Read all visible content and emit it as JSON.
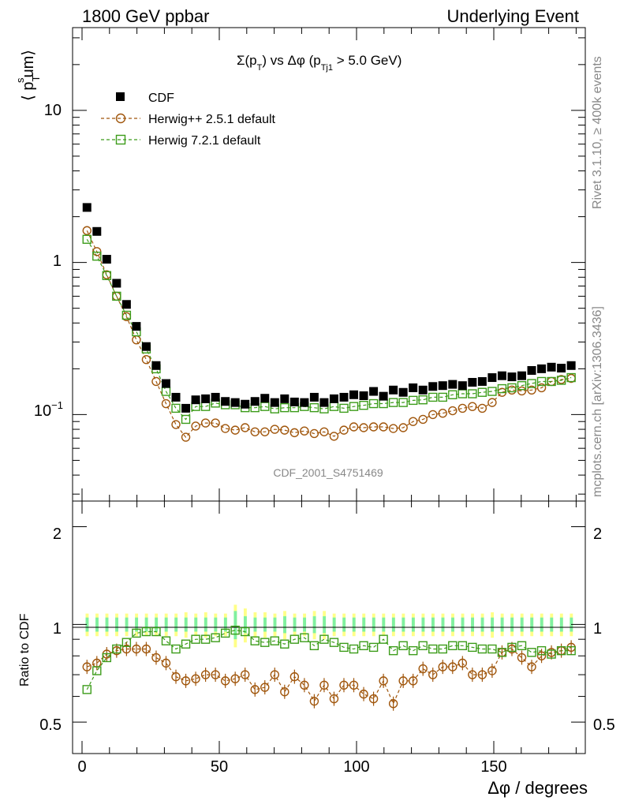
{
  "header": {
    "left": "1800 GeV ppbar",
    "right": "Underlying Event"
  },
  "side": {
    "rivet": "Rivet 3.1.10, ≥ 400k events",
    "mcplots": "mcplots.cern.ch [arXiv:1306.3436]"
  },
  "watermark": "CDF_2001_S4751469",
  "main": {
    "title_parts": [
      "Σ(p",
      "T",
      ") vs Δφ (p",
      "Tj1",
      " > 5.0 GeV)"
    ],
    "ylabel_parts": [
      "⟨ p",
      "T",
      "s",
      "um⟩"
    ],
    "yticks": {
      "t1": "1",
      "t10": "10"
    },
    "ytick_exp": {
      "base": "10",
      "exp": "−1"
    }
  },
  "legend": [
    {
      "label": "CDF",
      "marker": "square-filled",
      "color": "#000000"
    },
    {
      "label": "Herwig++ 2.5.1 default",
      "marker": "circle-open",
      "color": "#a0560c"
    },
    {
      "label": "Herwig 7.2.1 default",
      "marker": "square-open",
      "color": "#3c9c1a"
    }
  ],
  "ratio": {
    "ylabel": "Ratio to CDF",
    "yticks": [
      "0.5",
      "1",
      "2"
    ]
  },
  "xaxis": {
    "label": "Δφ / degrees",
    "ticks": [
      "0",
      "50",
      "100",
      "150"
    ]
  },
  "chart_data": {
    "type": "scatter",
    "x_unit": "degrees",
    "x": [
      1.8,
      5.4,
      9.0,
      12.6,
      16.2,
      19.8,
      23.4,
      27.0,
      30.6,
      34.2,
      37.8,
      41.4,
      45.0,
      48.6,
      52.2,
      55.8,
      59.4,
      63.0,
      66.6,
      70.2,
      73.8,
      77.4,
      81.0,
      84.6,
      88.2,
      91.8,
      95.4,
      99.0,
      102.6,
      106.2,
      109.8,
      113.4,
      117.0,
      120.6,
      124.2,
      127.8,
      131.4,
      135.0,
      138.6,
      142.2,
      145.8,
      149.4,
      153.0,
      156.6,
      160.2,
      163.8,
      167.4,
      171.0,
      174.6,
      178.2
    ],
    "main_panel": {
      "ylog": true,
      "ylim": [
        0.027,
        35
      ],
      "xlim": [
        -5,
        182
      ]
    },
    "series": [
      {
        "name": "CDF",
        "values": [
          2.3,
          1.6,
          1.05,
          0.73,
          0.53,
          0.38,
          0.28,
          0.21,
          0.16,
          0.13,
          0.11,
          0.125,
          0.127,
          0.13,
          0.122,
          0.12,
          0.117,
          0.122,
          0.128,
          0.12,
          0.127,
          0.121,
          0.12,
          0.13,
          0.12,
          0.127,
          0.13,
          0.135,
          0.133,
          0.142,
          0.132,
          0.145,
          0.14,
          0.15,
          0.145,
          0.153,
          0.155,
          0.158,
          0.155,
          0.163,
          0.165,
          0.175,
          0.18,
          0.177,
          0.18,
          0.195,
          0.2,
          0.205,
          0.202,
          0.21
        ]
      },
      {
        "name": "Herwig++ 2.5.1 default",
        "values": [
          1.62,
          1.18,
          0.83,
          0.6,
          0.44,
          0.31,
          0.23,
          0.165,
          0.118,
          0.086,
          0.071,
          0.084,
          0.088,
          0.088,
          0.081,
          0.079,
          0.082,
          0.077,
          0.077,
          0.08,
          0.079,
          0.076,
          0.078,
          0.075,
          0.077,
          0.072,
          0.079,
          0.083,
          0.082,
          0.083,
          0.083,
          0.081,
          0.082,
          0.09,
          0.093,
          0.1,
          0.102,
          0.106,
          0.11,
          0.113,
          0.11,
          0.12,
          0.14,
          0.145,
          0.143,
          0.145,
          0.15,
          0.165,
          0.17,
          0.173
        ]
      },
      {
        "name": "Herwig 7.2.1 default",
        "values": [
          1.42,
          1.1,
          0.82,
          0.6,
          0.45,
          0.35,
          0.27,
          0.2,
          0.142,
          0.11,
          0.093,
          0.113,
          0.113,
          0.119,
          0.116,
          0.116,
          0.111,
          0.111,
          0.113,
          0.109,
          0.111,
          0.111,
          0.113,
          0.111,
          0.109,
          0.113,
          0.11,
          0.113,
          0.115,
          0.118,
          0.118,
          0.12,
          0.12,
          0.124,
          0.125,
          0.13,
          0.13,
          0.135,
          0.137,
          0.137,
          0.14,
          0.142,
          0.148,
          0.15,
          0.155,
          0.16,
          0.165,
          0.165,
          0.168,
          0.175
        ]
      }
    ],
    "ratio_panel": {
      "ylabel": "Ratio to CDF",
      "ylog": true,
      "ylim": [
        0.4,
        2.4
      ],
      "band_inner_halfwidth": [
        0.05,
        0.05,
        0.05,
        0.05,
        0.05,
        0.05,
        0.05,
        0.05,
        0.05,
        0.05,
        0.05,
        0.05,
        0.05,
        0.05,
        0.05,
        0.1,
        0.06,
        0.05,
        0.05,
        0.05,
        0.06,
        0.05,
        0.05,
        0.06,
        0.06,
        0.05,
        0.05,
        0.05,
        0.05,
        0.05,
        0.05,
        0.05,
        0.05,
        0.05,
        0.05,
        0.05,
        0.05,
        0.05,
        0.05,
        0.05,
        0.05,
        0.05,
        0.05,
        0.05,
        0.05,
        0.05,
        0.05,
        0.05,
        0.05,
        0.05
      ],
      "band_outer_halfwidth": [
        0.08,
        0.08,
        0.08,
        0.08,
        0.08,
        0.08,
        0.08,
        0.08,
        0.08,
        0.08,
        0.09,
        0.08,
        0.09,
        0.08,
        0.08,
        0.15,
        0.12,
        0.09,
        0.09,
        0.08,
        0.1,
        0.08,
        0.08,
        0.1,
        0.1,
        0.08,
        0.08,
        0.08,
        0.08,
        0.08,
        0.08,
        0.08,
        0.08,
        0.08,
        0.08,
        0.08,
        0.08,
        0.08,
        0.08,
        0.08,
        0.08,
        0.09,
        0.08,
        0.08,
        0.08,
        0.08,
        0.08,
        0.08,
        0.08,
        0.08
      ],
      "series": [
        {
          "name": "Herwig++ 2.5.1 default",
          "values": [
            0.74,
            0.76,
            0.81,
            0.83,
            0.84,
            0.84,
            0.84,
            0.79,
            0.76,
            0.69,
            0.67,
            0.68,
            0.7,
            0.7,
            0.67,
            0.68,
            0.7,
            0.63,
            0.64,
            0.7,
            0.62,
            0.69,
            0.65,
            0.58,
            0.65,
            0.59,
            0.65,
            0.65,
            0.61,
            0.59,
            0.67,
            0.57,
            0.67,
            0.67,
            0.73,
            0.7,
            0.74,
            0.74,
            0.76,
            0.7,
            0.7,
            0.72,
            0.82,
            0.84,
            0.79,
            0.74,
            0.8,
            0.82,
            0.83,
            0.85
          ]
        },
        {
          "name": "Herwig 7.2.1 default",
          "values": [
            0.63,
            0.72,
            0.79,
            0.84,
            0.88,
            0.94,
            0.95,
            0.95,
            0.89,
            0.84,
            0.87,
            0.9,
            0.9,
            0.91,
            0.94,
            0.96,
            0.95,
            0.89,
            0.88,
            0.89,
            0.87,
            0.9,
            0.91,
            0.86,
            0.9,
            0.88,
            0.85,
            0.84,
            0.86,
            0.85,
            0.9,
            0.83,
            0.86,
            0.83,
            0.86,
            0.84,
            0.84,
            0.86,
            0.86,
            0.85,
            0.84,
            0.84,
            0.82,
            0.85,
            0.86,
            0.82,
            0.83,
            0.81,
            0.83,
            0.83
          ]
        }
      ]
    }
  }
}
